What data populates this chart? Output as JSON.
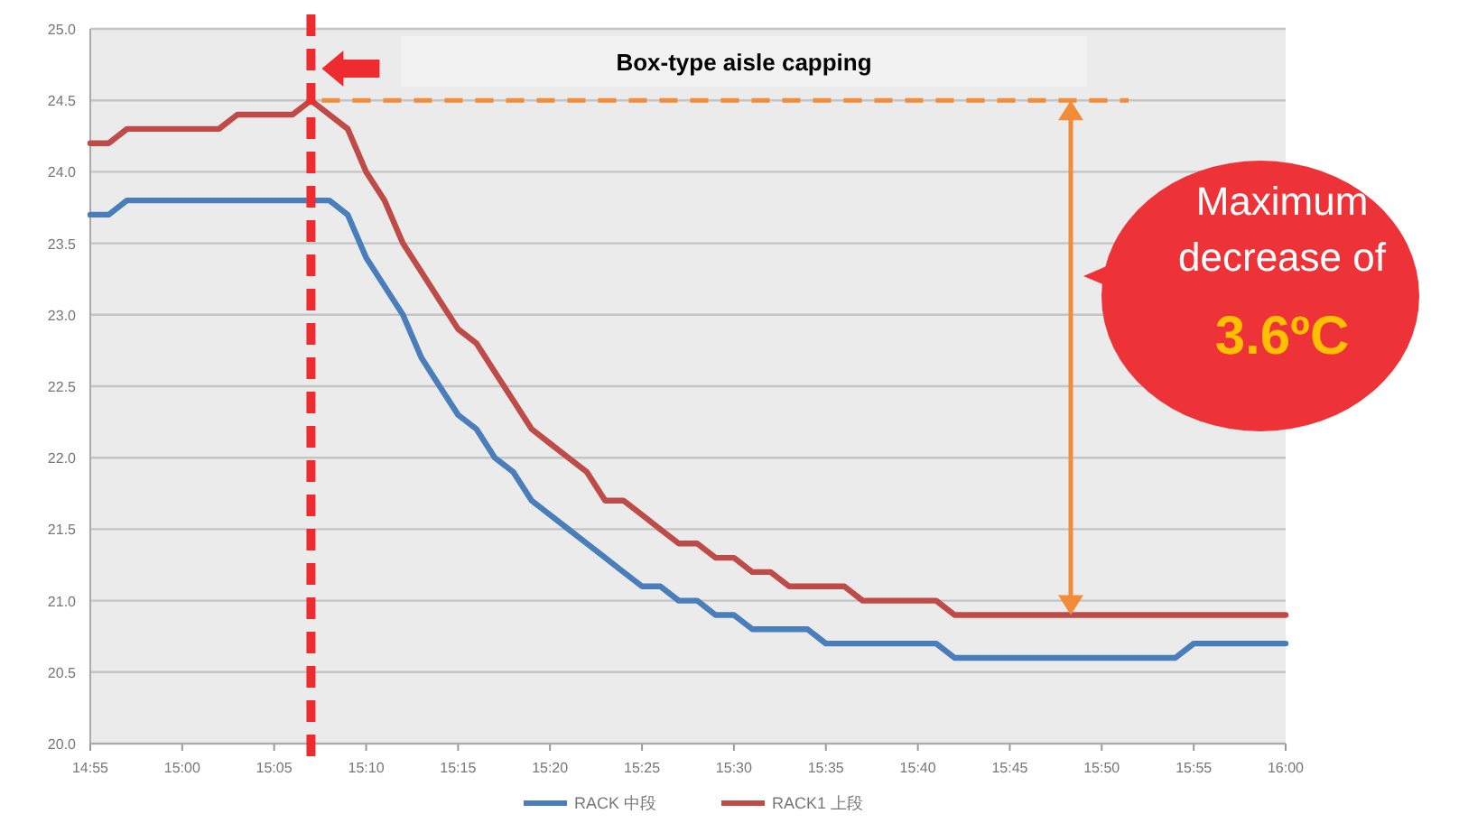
{
  "chart_data": {
    "type": "line",
    "x": [
      14.9167,
      14.9333,
      14.95,
      14.9667,
      14.9833,
      15,
      15.0167,
      15.0333,
      15.05,
      15.0667,
      15.0833,
      15.1,
      15.1167,
      15.1333,
      15.15,
      15.1667,
      15.1833,
      15.2,
      15.2167,
      15.2333,
      15.25,
      15.2667,
      15.2833,
      15.3,
      15.3167,
      15.3333,
      15.35,
      15.3667,
      15.3833,
      15.4,
      15.4167,
      15.4333,
      15.45,
      15.4667,
      15.4833,
      15.5,
      15.5167,
      15.5333,
      15.55,
      15.5667,
      15.5833,
      15.6,
      15.6167,
      15.6333,
      15.65,
      15.6667,
      15.6833,
      15.7,
      15.7167,
      15.7333,
      15.75,
      15.7667,
      15.7833,
      15.8,
      15.8167,
      15.8333,
      15.85,
      15.8667,
      15.8833,
      15.9,
      15.9167,
      15.9333,
      15.95,
      15.9667,
      15.9833,
      16
    ],
    "series": [
      {
        "name": "RACK 中段",
        "color": "#4a7ebb",
        "values": [
          23.7,
          23.7,
          23.8,
          23.8,
          23.8,
          23.8,
          23.8,
          23.8,
          23.8,
          23.8,
          23.8,
          23.8,
          23.8,
          23.8,
          23.7,
          23.4,
          23.2,
          23.0,
          22.7,
          22.5,
          22.3,
          22.2,
          22.0,
          21.9,
          21.7,
          21.6,
          21.5,
          21.4,
          21.3,
          21.2,
          21.1,
          21.1,
          21.0,
          21.0,
          20.9,
          20.9,
          20.8,
          20.8,
          20.8,
          20.8,
          20.7,
          20.7,
          20.7,
          20.7,
          20.7,
          20.7,
          20.7,
          20.6,
          20.6,
          20.6,
          20.6,
          20.6,
          20.6,
          20.6,
          20.6,
          20.6,
          20.6,
          20.6,
          20.6,
          20.6,
          20.7,
          20.7,
          20.7,
          20.7,
          20.7,
          20.7
        ]
      },
      {
        "name": "RACK1 上段",
        "color": "#be4b48",
        "values": [
          24.2,
          24.2,
          24.3,
          24.3,
          24.3,
          24.3,
          24.3,
          24.3,
          24.4,
          24.4,
          24.4,
          24.4,
          24.5,
          24.4,
          24.3,
          24.0,
          23.8,
          23.5,
          23.3,
          23.1,
          22.9,
          22.8,
          22.6,
          22.4,
          22.2,
          22.1,
          22.0,
          21.9,
          21.7,
          21.7,
          21.6,
          21.5,
          21.4,
          21.4,
          21.3,
          21.3,
          21.2,
          21.2,
          21.1,
          21.1,
          21.1,
          21.1,
          21.0,
          21.0,
          21.0,
          21.0,
          21.0,
          20.9,
          20.9,
          20.9,
          20.9,
          20.9,
          20.9,
          20.9,
          20.9,
          20.9,
          20.9,
          20.9,
          20.9,
          20.9,
          20.9,
          20.9,
          20.9,
          20.9,
          20.9,
          20.9
        ]
      }
    ],
    "xlim": [
      14.9167,
      16
    ],
    "xticks": [
      {
        "value": 14.9167,
        "label": "14:55"
      },
      {
        "value": 15,
        "label": "15:00"
      },
      {
        "value": 15.0833,
        "label": "15:05"
      },
      {
        "value": 15.1667,
        "label": "15:10"
      },
      {
        "value": 15.25,
        "label": "15:15"
      },
      {
        "value": 15.3333,
        "label": "15:20"
      },
      {
        "value": 15.4167,
        "label": "15:25"
      },
      {
        "value": 15.5,
        "label": "15:30"
      },
      {
        "value": 15.5833,
        "label": "15:35"
      },
      {
        "value": 15.6667,
        "label": "15:40"
      },
      {
        "value": 15.75,
        "label": "15:45"
      },
      {
        "value": 15.8333,
        "label": "15:50"
      },
      {
        "value": 15.9167,
        "label": "15:55"
      },
      {
        "value": 16,
        "label": "16:00"
      }
    ],
    "ylim": [
      20,
      25
    ],
    "yticks": [
      {
        "value": 20,
        "label": "20.0"
      },
      {
        "value": 20.5,
        "label": "20.5"
      },
      {
        "value": 21,
        "label": "21.0"
      },
      {
        "value": 21.5,
        "label": "21.5"
      },
      {
        "value": 22,
        "label": "22.0"
      },
      {
        "value": 22.5,
        "label": "22.5"
      },
      {
        "value": 23,
        "label": "23.0"
      },
      {
        "value": 23.5,
        "label": "23.5"
      },
      {
        "value": 24,
        "label": "24.0"
      },
      {
        "value": 24.5,
        "label": "24.5"
      },
      {
        "value": 25,
        "label": "25.0"
      }
    ],
    "grid": "y",
    "legend": "bottom",
    "marker": "none",
    "line_style": "solid",
    "ref_lines": [
      {
        "axis": "x",
        "value": 15.1167,
        "color": "#ee2b2f",
        "line_style": "dashed"
      },
      {
        "axis": "y",
        "value": 24.5,
        "color": "#f28c38",
        "line_style": "dashed"
      }
    ],
    "annotations": [
      "Box-type aisle capping",
      "Maximum decrease of",
      "3.6ºC"
    ]
  }
}
